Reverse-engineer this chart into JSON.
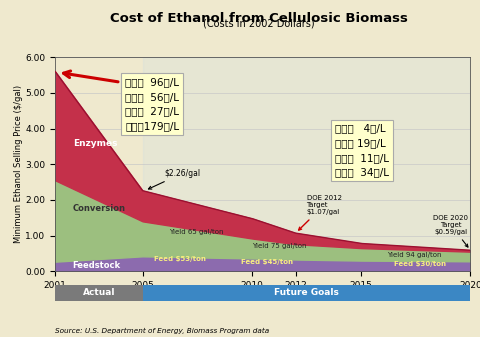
{
  "title": "Cost of Ethanol from Cellulosic Biomass",
  "subtitle": "(Costs in 2002 Dollars)",
  "ylabel": "Minimum Ethanol Selling Price ($/gal)",
  "source": "Source: U.S. Department of Energy, Biomass Program data",
  "years": [
    2001,
    2005,
    2010,
    2012,
    2015,
    2020
  ],
  "feedstock_values": [
    0.27,
    0.42,
    0.36,
    0.33,
    0.3,
    0.28
  ],
  "conversion_top": [
    2.55,
    1.4,
    0.92,
    0.76,
    0.65,
    0.55
  ],
  "enzyme_top": [
    5.6,
    2.26,
    1.48,
    1.07,
    0.78,
    0.59
  ],
  "colors": {
    "feedstock": "#8C6BAE",
    "conversion": "#9CBF7F",
    "enzyme": "#C4304A",
    "enzyme_line": "#9B1030",
    "background": "#EFE9CE",
    "actual_bar": "#7A7A7A",
    "future_bar": "#3B87C4",
    "box_fill": "#FFFFCC",
    "box_edge": "#AAAAAA",
    "arrow_red": "#CC0000",
    "grid": "#C8C8C8",
    "light_blue": "#C8DDE8",
    "x_axis_bg": "#1A1A1A"
  },
  "ylim": [
    0.0,
    6.0
  ],
  "xlim": [
    2001,
    2020
  ],
  "yticks": [
    0.0,
    1.0,
    2.0,
    3.0,
    4.0,
    5.0,
    6.0
  ],
  "xticks": [
    2001,
    2005,
    2010,
    2012,
    2015,
    2020
  ],
  "box_left_lines": [
    "酵素：  96円/L",
    "変換：  56円/L",
    "原料：  27円/L",
    "合計：179円/L"
  ],
  "box_right_lines": [
    "酵素：   4円/L",
    "変換： 19円/L",
    "原料：  11円/L",
    "合計：  34円/L"
  ]
}
